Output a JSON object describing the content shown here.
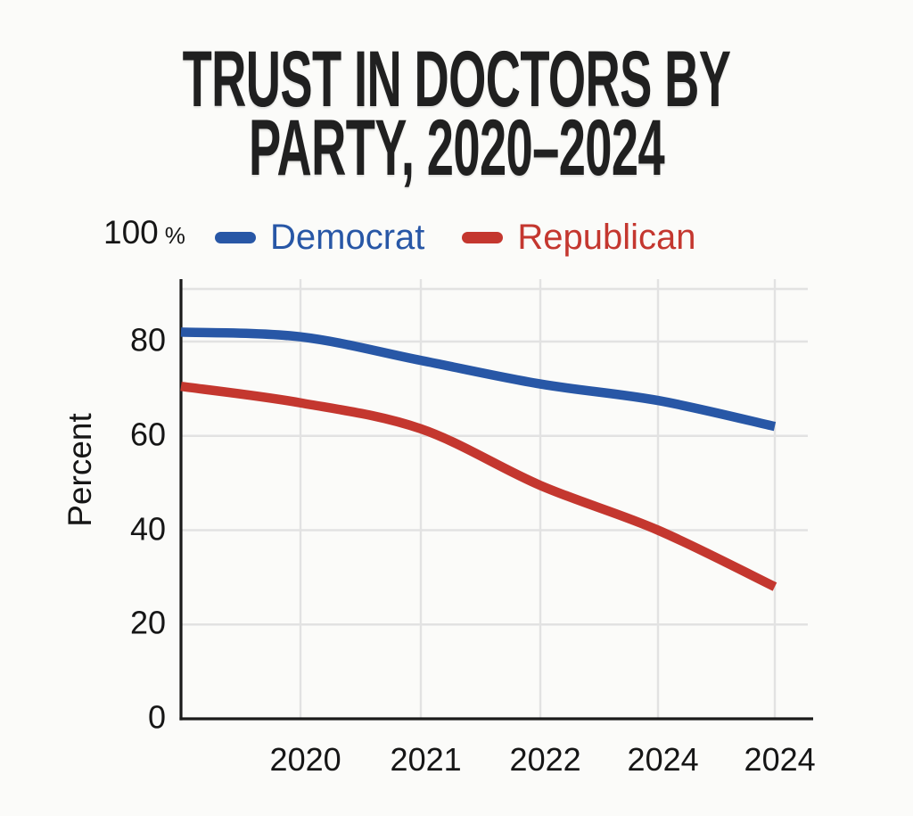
{
  "header": {
    "title_line1": "TRUST IN DOCTORS BY",
    "title_line2": "PARTY, 2020–2024"
  },
  "axes": {
    "y_top_tick": {
      "value": "100",
      "unit": "%"
    }
  },
  "colors": {
    "background": "#FBFBF9",
    "title": "#202020",
    "text": "#161616",
    "grid": "#E2E2E2",
    "axis": "#1A1A1A"
  },
  "chart_data": {
    "type": "line",
    "title": "TRUST IN DOCTORS BY PARTY, 2020–2024",
    "ylabel": "Percent",
    "xlabel": "",
    "ylim": [
      0,
      100
    ],
    "y_tick_values": [
      0,
      20,
      40,
      60,
      80,
      100
    ],
    "grid": true,
    "legend_position": "top",
    "x_labels": [
      "",
      "2020",
      "2021",
      "2022",
      "2024",
      "2024"
    ],
    "series": [
      {
        "name": "Democrat",
        "color": "#2857A6",
        "values": [
          82,
          81,
          76,
          71,
          67.5,
          62
        ]
      },
      {
        "name": "Republican",
        "color": "#C4372F",
        "values": [
          70.5,
          67,
          61.5,
          49.5,
          40,
          28
        ]
      }
    ]
  }
}
